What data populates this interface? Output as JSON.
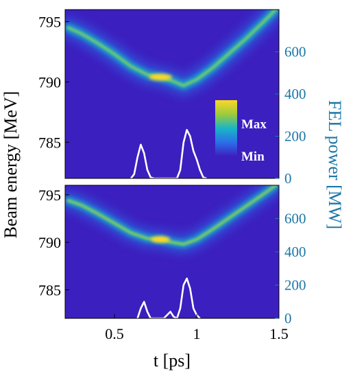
{
  "chart_data": [
    {
      "type": "heatmap",
      "panel": "top",
      "xlim": [
        0.2,
        1.5
      ],
      "ylim": [
        782,
        796
      ],
      "y2lim": [
        0,
        800
      ],
      "yticks": [
        785,
        790,
        795
      ],
      "y2ticks": [
        0,
        200,
        400,
        600
      ],
      "ridge": {
        "t": [
          0.22,
          0.3,
          0.4,
          0.5,
          0.6,
          0.7,
          0.78,
          0.85,
          0.92,
          1.0,
          1.1,
          1.2,
          1.3,
          1.4,
          1.48
        ],
        "energy": [
          794.5,
          794.0,
          793.2,
          792.3,
          791.3,
          790.6,
          790.4,
          790.1,
          789.7,
          790.2,
          791.2,
          792.4,
          793.6,
          794.9,
          796.0
        ]
      },
      "power_series": {
        "name": "",
        "color": "#ffffff",
        "t": [
          0.6,
          0.62,
          0.64,
          0.66,
          0.68,
          0.7,
          0.72,
          0.74,
          0.88,
          0.9,
          0.92,
          0.94,
          0.96,
          0.98,
          1.0,
          1.02,
          1.04,
          1.06
        ],
        "power": [
          0,
          20,
          100,
          160,
          120,
          40,
          5,
          0,
          0,
          40,
          170,
          230,
          200,
          130,
          90,
          40,
          5,
          0
        ]
      }
    },
    {
      "type": "heatmap",
      "panel": "bottom",
      "xlim": [
        0.2,
        1.5
      ],
      "ylim": [
        782,
        796
      ],
      "y2lim": [
        0,
        800
      ],
      "yticks": [
        785,
        790,
        795
      ],
      "y2ticks": [
        0,
        200,
        400,
        600
      ],
      "xticks": [
        0.5,
        1,
        1.5
      ],
      "xticklabels": [
        "0.5",
        "1",
        "1.5"
      ],
      "ridge": {
        "t": [
          0.22,
          0.3,
          0.4,
          0.5,
          0.6,
          0.7,
          0.78,
          0.85,
          0.92,
          1.0,
          1.1,
          1.2,
          1.3,
          1.4,
          1.48
        ],
        "energy": [
          794.4,
          793.9,
          793.0,
          792.0,
          791.0,
          790.4,
          790.3,
          790.0,
          789.8,
          790.3,
          791.4,
          792.6,
          793.8,
          795.0,
          796.0
        ]
      },
      "power_series": {
        "name": "",
        "color": "#ffffff",
        "t": [
          0.64,
          0.66,
          0.68,
          0.7,
          0.72,
          0.8,
          0.82,
          0.84,
          0.86,
          0.88,
          0.9,
          0.92,
          0.94,
          0.96,
          0.98,
          1.0,
          1.02
        ],
        "power": [
          0,
          60,
          100,
          40,
          0,
          0,
          20,
          40,
          10,
          0,
          60,
          200,
          240,
          180,
          60,
          20,
          0
        ]
      }
    }
  ],
  "labels": {
    "ylabel": "Beam energy [MeV]",
    "y2label": "FEL power [MW]",
    "xlabel": "t [ps]",
    "colorbar_max": "Max",
    "colorbar_min": "Min"
  },
  "colors": {
    "background": "#3c1fbf",
    "ridge_colormap": [
      "#3c1fbf",
      "#2c6ee8",
      "#18b8c8",
      "#4ccc82",
      "#c8c832",
      "#f9d82a"
    ],
    "power_line": "#ffffff",
    "right_axis": "#1b77a8"
  }
}
